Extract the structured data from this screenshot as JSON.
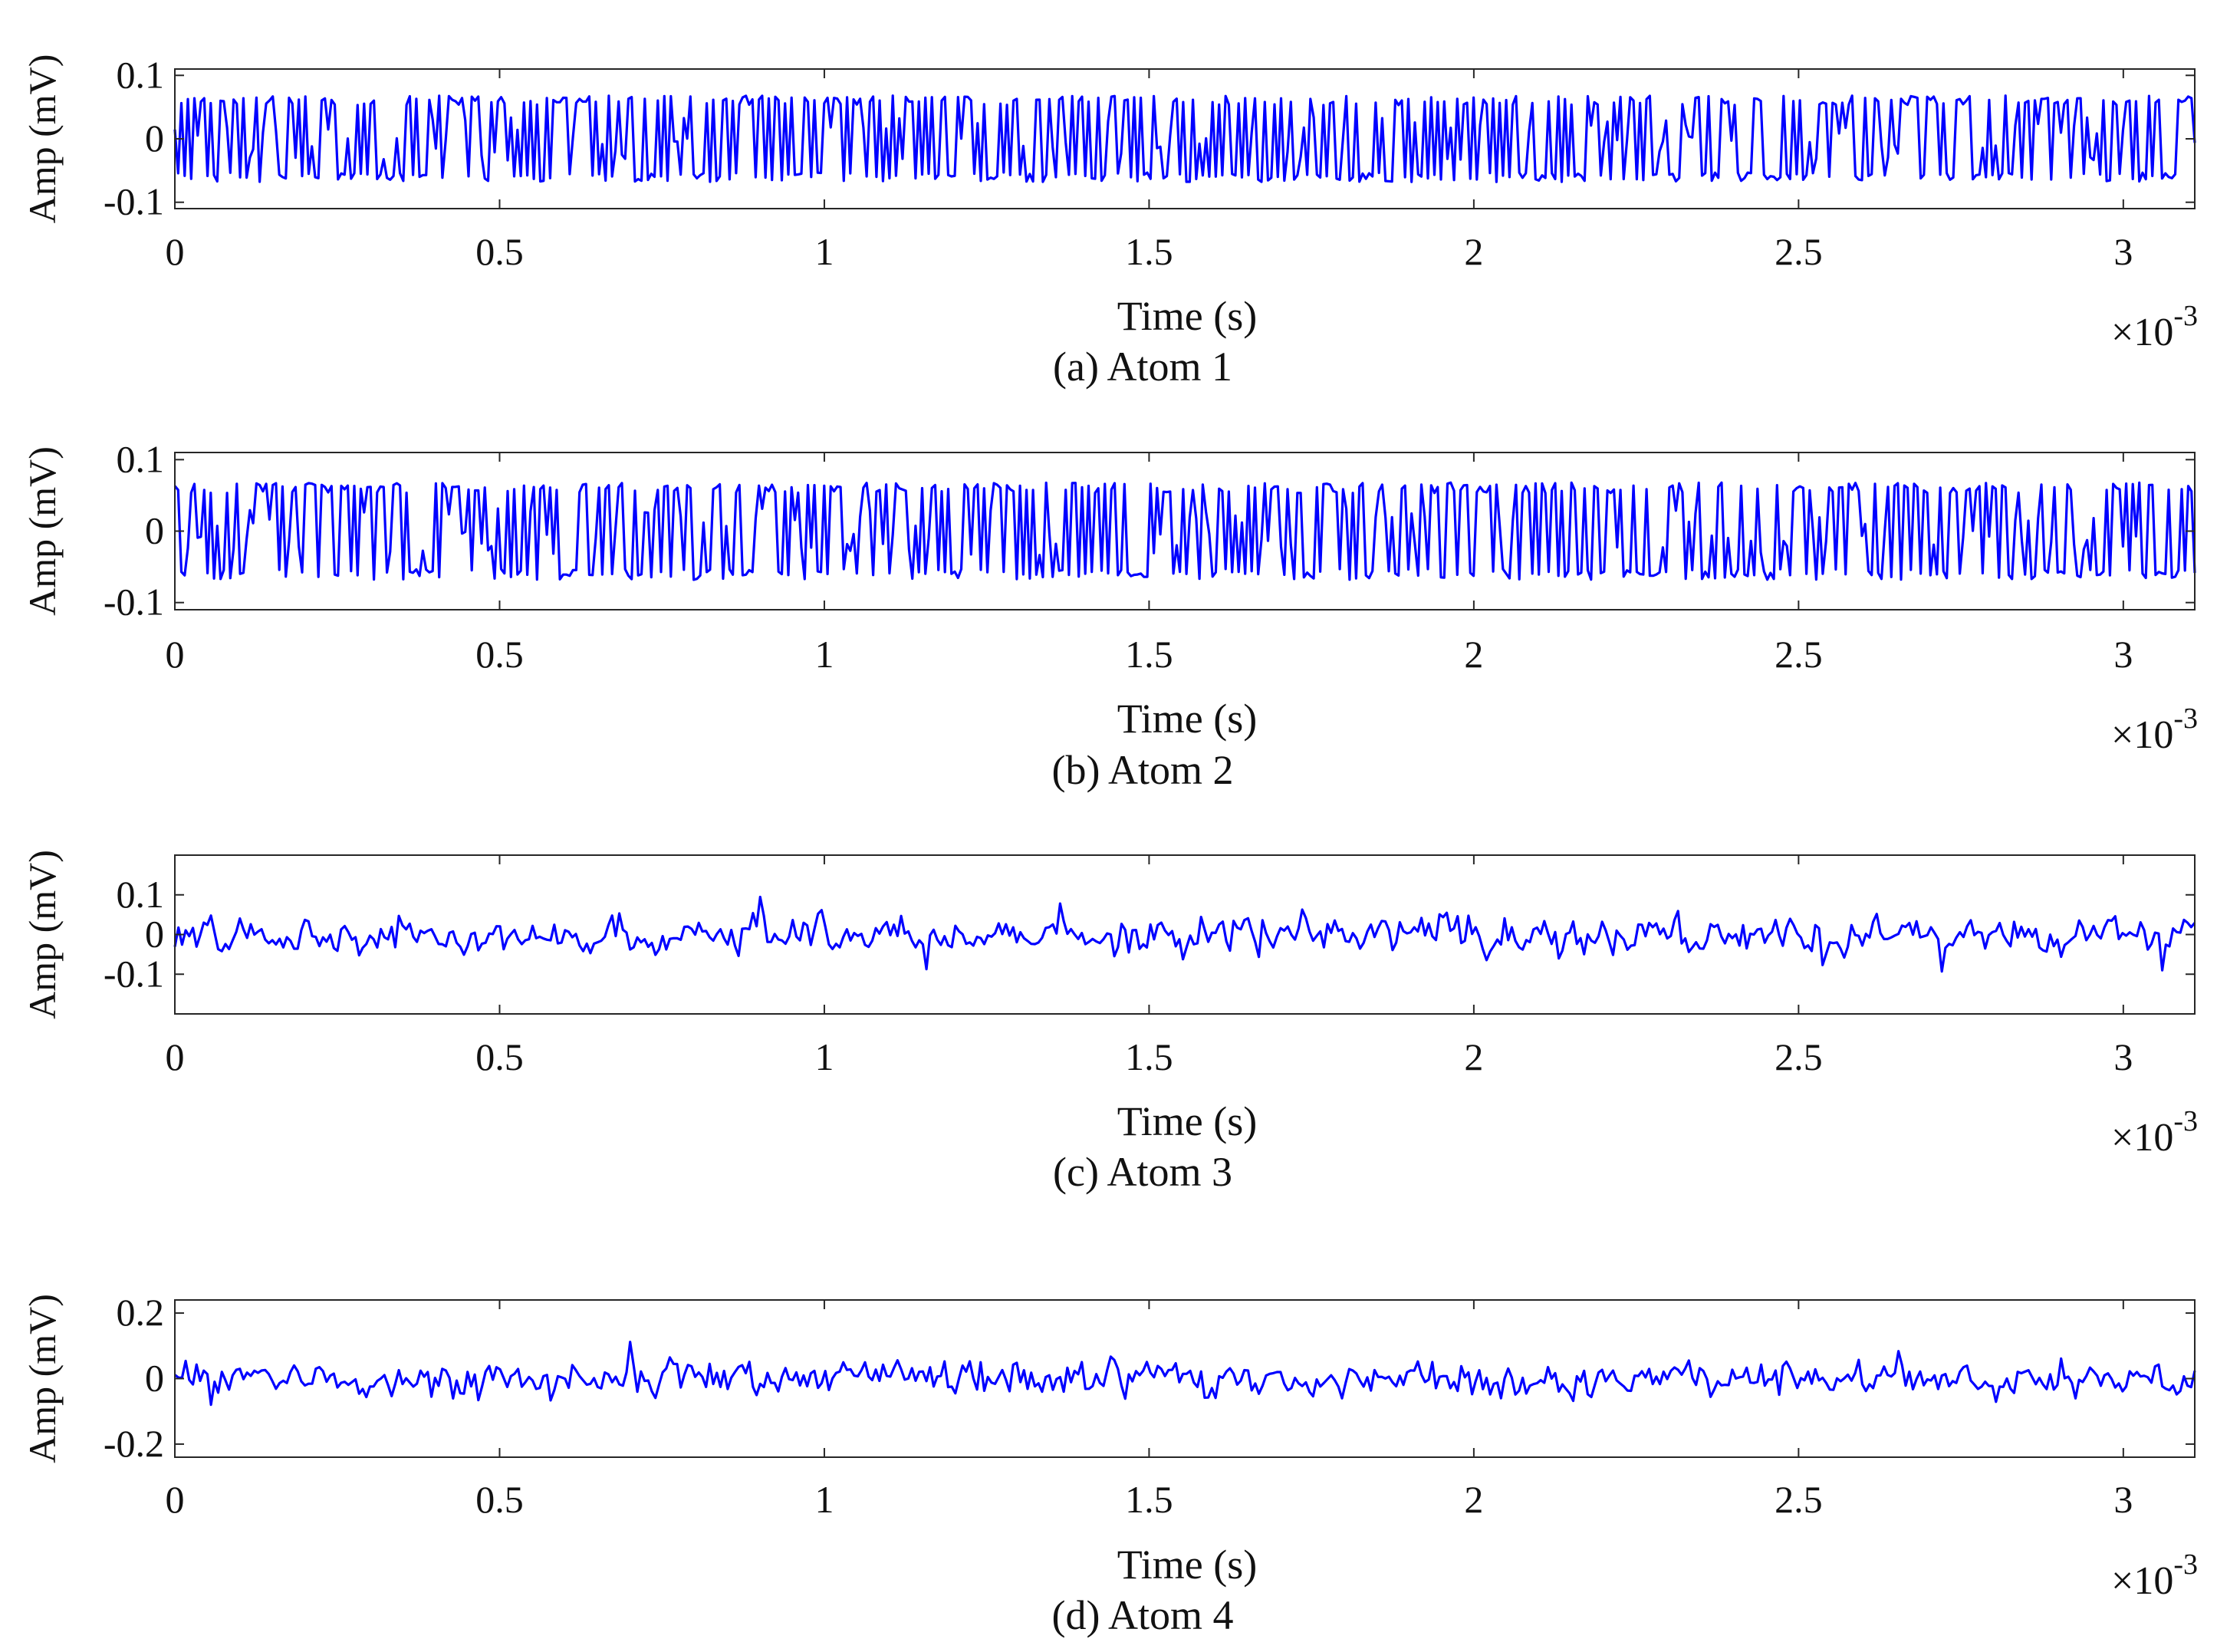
{
  "chart_data": [
    {
      "type": "line",
      "caption": "(a) Atom 1",
      "xlabel": "Time (s)",
      "x_exponent_base": "×10",
      "x_exponent": "-3",
      "ylabel": "Amp (mV)",
      "xlim": [
        0,
        3.11
      ],
      "ylim": [
        -0.11,
        0.11
      ],
      "xticks": [
        0,
        0.5,
        1,
        1.5,
        2,
        2.5,
        3
      ],
      "xtick_labels": [
        "0",
        "0.5",
        "1",
        "1.5",
        "2",
        "2.5",
        "3"
      ],
      "yticks": [
        -0.1,
        0,
        0.1
      ],
      "ytick_labels": [
        "-0.1",
        "0",
        "0.1"
      ],
      "series": [
        {
          "name": "Atom 1",
          "color": "#0000ff",
          "style": "square",
          "amplitude": 0.068,
          "seed": 11,
          "points": 620
        }
      ]
    },
    {
      "type": "line",
      "caption": "(b) Atom 2",
      "xlabel": "Time (s)",
      "x_exponent_base": "×10",
      "x_exponent": "-3",
      "ylabel": "Amp (mV)",
      "xlim": [
        0,
        3.11
      ],
      "ylim": [
        -0.11,
        0.11
      ],
      "xticks": [
        0,
        0.5,
        1,
        1.5,
        2,
        2.5,
        3
      ],
      "xtick_labels": [
        "0",
        "0.5",
        "1",
        "1.5",
        "2",
        "2.5",
        "3"
      ],
      "yticks": [
        -0.1,
        0,
        0.1
      ],
      "ytick_labels": [
        "-0.1",
        "0",
        "0.1"
      ],
      "series": [
        {
          "name": "Atom 2",
          "color": "#0000ff",
          "style": "square",
          "amplitude": 0.068,
          "seed": 29,
          "points": 620
        }
      ]
    },
    {
      "type": "line",
      "caption": "(c) Atom 3",
      "xlabel": "Time (s)",
      "x_exponent_base": "×10",
      "x_exponent": "-3",
      "ylabel": "Amp (mV)",
      "xlim": [
        0,
        3.11
      ],
      "ylim": [
        -0.2,
        0.2
      ],
      "xticks": [
        0,
        0.5,
        1,
        1.5,
        2,
        2.5,
        3
      ],
      "xtick_labels": [
        "0",
        "0.5",
        "1",
        "1.5",
        "2",
        "2.5",
        "3"
      ],
      "yticks": [
        -0.1,
        0,
        0.1
      ],
      "ytick_labels": [
        "-0.1",
        "0",
        "0.1"
      ],
      "series": [
        {
          "name": "Atom 3",
          "color": "#0000ff",
          "style": "noise",
          "amplitude": 0.12,
          "seed": 47,
          "points": 560
        }
      ]
    },
    {
      "type": "line",
      "caption": "(d) Atom 4",
      "xlabel": "Time (s)",
      "x_exponent_base": "×10",
      "x_exponent": "-3",
      "ylabel": "Amp (mV)",
      "xlim": [
        0,
        3.11
      ],
      "ylim": [
        -0.24,
        0.24
      ],
      "xticks": [
        0,
        0.5,
        1,
        1.5,
        2,
        2.5,
        3
      ],
      "xtick_labels": [
        "0",
        "0.5",
        "1",
        "1.5",
        "2",
        "2.5",
        "3"
      ],
      "yticks": [
        -0.2,
        0,
        0.2
      ],
      "ytick_labels": [
        "-0.2",
        "0",
        "0.2"
      ],
      "series": [
        {
          "name": "Atom 4",
          "color": "#0000ff",
          "style": "noise",
          "amplitude": 0.14,
          "seed": 83,
          "points": 560
        }
      ]
    }
  ]
}
